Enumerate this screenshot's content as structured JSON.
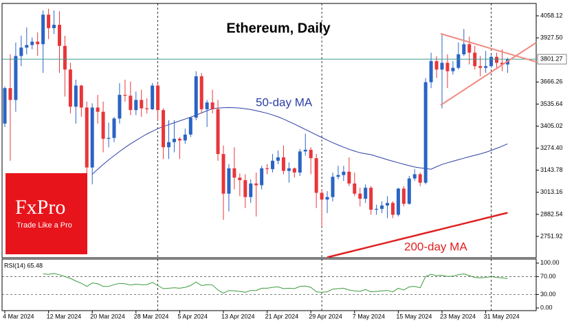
{
  "chart_data": [
    {
      "type": "candlestick",
      "title": "Ethereum, Daily",
      "categories": [
        "4 Mar 2024",
        null,
        null,
        null,
        null,
        null,
        null,
        null,
        "12 Mar 2024",
        null,
        null,
        null,
        null,
        null,
        null,
        null,
        "20 Mar 2024",
        null,
        null,
        null,
        null,
        null,
        null,
        null,
        "28 Mar 2024",
        null,
        null,
        null,
        null,
        null,
        null,
        null,
        "5 Apr 2024",
        null,
        null,
        null,
        null,
        null,
        null,
        null,
        "13 Apr 2024",
        null,
        null,
        null,
        null,
        null,
        null,
        null,
        "21 Apr 2024",
        null,
        null,
        null,
        null,
        null,
        null,
        null,
        "29 Apr 2024",
        null,
        null,
        null,
        null,
        null,
        null,
        null,
        "7 May 2024",
        null,
        null,
        null,
        null,
        null,
        null,
        null,
        "15 May 2024",
        null,
        null,
        null,
        null,
        null,
        null,
        null,
        "23 May 2024",
        null,
        null,
        null,
        null,
        null,
        null,
        null,
        "31 May 2024",
        null,
        null,
        null,
        null
      ],
      "open": [
        3420,
        3630,
        3560,
        3820,
        3870,
        3885,
        3905,
        3890,
        4065,
        3985,
        4005,
        3880,
        3740,
        3520,
        3645,
        3515,
        3160,
        3515,
        3490,
        3330,
        3335,
        3450,
        3590,
        3585,
        3500,
        3560,
        3510,
        3505,
        3645,
        3500,
        3280,
        3310,
        3330,
        3320,
        3355,
        3455,
        3700,
        3505,
        3545,
        3505,
        3240,
        3005,
        3155,
        3100,
        3085,
        2985,
        3065,
        3055,
        3155,
        3150,
        3200,
        3220,
        3140,
        3155,
        3130,
        3255,
        3265,
        3215,
        3010,
        2970,
        2985,
        3105,
        3115,
        3135,
        3065,
        3005,
        2975,
        3040,
        2910,
        2915,
        2935,
        2950,
        2880,
        3035,
        2945,
        3095,
        3120,
        3070,
        3665,
        3790,
        3740,
        3780,
        3730,
        3750,
        3830,
        3890,
        3840,
        3760,
        3750,
        3760,
        3815,
        3780,
        3770
      ],
      "high": [
        3640,
        3830,
        3900,
        3940,
        3990,
        3930,
        3960,
        4090,
        4100,
        4090,
        4085,
        3940,
        3780,
        3680,
        3650,
        3550,
        3540,
        3590,
        3550,
        3425,
        3460,
        3660,
        3680,
        3670,
        3610,
        3620,
        3570,
        3660,
        3660,
        3510,
        3440,
        3440,
        3340,
        3390,
        3460,
        3730,
        3720,
        3560,
        3620,
        3560,
        3290,
        3180,
        3280,
        3125,
        3120,
        3090,
        3130,
        3170,
        3180,
        3240,
        3260,
        3290,
        3190,
        3160,
        3270,
        3360,
        3280,
        3240,
        3030,
        3020,
        3130,
        3170,
        3170,
        3220,
        3130,
        3040,
        3060,
        3050,
        2940,
        2960,
        2990,
        2960,
        3040,
        3050,
        3110,
        3150,
        3130,
        3690,
        3840,
        3820,
        3950,
        3830,
        3790,
        3900,
        3980,
        3935,
        3880,
        3820,
        3850,
        3830,
        3840,
        3860,
        3810
      ],
      "low": [
        3400,
        3200,
        3490,
        3760,
        3830,
        3860,
        3820,
        3720,
        3920,
        3950,
        3720,
        3580,
        3480,
        3420,
        3460,
        3060,
        3060,
        3420,
        3250,
        3280,
        3310,
        3420,
        3550,
        3470,
        3470,
        3460,
        3480,
        3500,
        3440,
        3210,
        3210,
        3250,
        3210,
        3300,
        3340,
        3440,
        3480,
        3400,
        3480,
        3200,
        2850,
        2900,
        3030,
        2990,
        2920,
        2950,
        2870,
        3030,
        3120,
        3130,
        3180,
        3120,
        3070,
        3100,
        3110,
        3230,
        3120,
        2920,
        2810,
        2890,
        2960,
        3090,
        3080,
        3050,
        2990,
        2930,
        2950,
        2880,
        2880,
        2890,
        2860,
        2860,
        2870,
        2930,
        2940,
        3080,
        3050,
        3060,
        3630,
        3690,
        3510,
        3630,
        3710,
        3740,
        3820,
        3770,
        3740,
        3700,
        3720,
        3750,
        3750,
        3730,
        3720
      ],
      "close": [
        3630,
        3560,
        3820,
        3870,
        3885,
        3905,
        3890,
        4065,
        3985,
        4005,
        3880,
        3740,
        3520,
        3645,
        3515,
        3160,
        3515,
        3490,
        3330,
        3335,
        3450,
        3590,
        3585,
        3500,
        3560,
        3510,
        3505,
        3645,
        3500,
        3280,
        3310,
        3330,
        3320,
        3355,
        3455,
        3700,
        3505,
        3545,
        3505,
        3240,
        3005,
        3155,
        3100,
        3085,
        2985,
        3065,
        3055,
        3155,
        3150,
        3200,
        3220,
        3140,
        3155,
        3130,
        3255,
        3265,
        3215,
        3010,
        2970,
        2985,
        3105,
        3115,
        3135,
        3065,
        3005,
        2975,
        3040,
        2910,
        2915,
        2935,
        2950,
        2880,
        3035,
        2945,
        3095,
        3120,
        3070,
        3665,
        3790,
        3740,
        3780,
        3730,
        3750,
        3830,
        3890,
        3840,
        3760,
        3750,
        3760,
        3815,
        3780,
        3770,
        3801.27
      ],
      "up_color": "#2a64c4",
      "down_color": "#e8363a",
      "last_price_color": "#3a9a8e",
      "series": [
        {
          "name": "50-day MA",
          "color": "#2b3ea6",
          "width": 1,
          "values": [
            null,
            null,
            null,
            null,
            null,
            null,
            null,
            null,
            null,
            null,
            null,
            null,
            null,
            null,
            null,
            null,
            3120,
            3150,
            3178,
            3205,
            3230,
            3255,
            3278,
            3300,
            3320,
            3340,
            3358,
            3374,
            3390,
            3402,
            3414,
            3425,
            3436,
            3447,
            3458,
            3470,
            3483,
            3496,
            3508,
            3512,
            3514,
            3515,
            3514,
            3512,
            3508,
            3503,
            3496,
            3489,
            3481,
            3471,
            3460,
            3447,
            3432,
            3417,
            3401,
            3385,
            3369,
            3353,
            3338,
            3322,
            3307,
            3293,
            3280,
            3268,
            3257,
            3247,
            3241,
            3236,
            3226,
            3216,
            3206,
            3197,
            3188,
            3179,
            3171,
            3163,
            3158,
            3154,
            3150,
            3165,
            3178,
            3188,
            3197,
            3206,
            3215,
            3224,
            3232,
            3240,
            3250,
            3261,
            3273,
            3286,
            3300
          ]
        },
        {
          "name": "200-day MA",
          "color": "#e02020",
          "width": 2.5,
          "values": [
            null,
            null,
            null,
            null,
            null,
            null,
            null,
            null,
            null,
            null,
            null,
            null,
            null,
            null,
            null,
            null,
            null,
            null,
            null,
            null,
            null,
            null,
            null,
            null,
            null,
            null,
            null,
            null,
            null,
            null,
            null,
            null,
            null,
            null,
            null,
            null,
            null,
            null,
            null,
            null,
            null,
            null,
            null,
            null,
            null,
            null,
            null,
            null,
            null,
            null,
            null,
            null,
            null,
            null,
            null,
            null,
            null,
            null,
            null,
            2628,
            2636,
            2644,
            2652,
            2660,
            2668,
            2676,
            2684,
            2692,
            2700,
            2708,
            2716,
            2724,
            2732,
            2740,
            2748,
            2756,
            2764,
            2772,
            2780,
            2788,
            2796,
            2804,
            2812,
            2820,
            2828,
            2836,
            2844,
            2852,
            2860,
            2868,
            2876,
            2884,
            2892
          ]
        }
      ],
      "ylim": [
        2625.7,
        4131.4
      ],
      "yticks": [
        4058.12,
        {
          "value": 3927.5,
          "label": "3927.50"
        },
        3666.26,
        3535.64,
        3405.02,
        {
          "value": 3274.4,
          "label": "3274.40"
        },
        3143.78,
        3013.16,
        2882.54,
        2751.92
      ]
    },
    {
      "type": "line",
      "title": "RSI(14) 65.48",
      "series": [
        {
          "color": "#3a9a3a",
          "values": [
            null,
            null,
            null,
            null,
            null,
            null,
            null,
            76,
            75,
            77,
            74,
            70,
            66,
            60,
            55,
            48,
            56,
            54,
            48,
            48,
            52,
            55,
            54,
            51,
            53,
            52,
            52,
            57,
            50,
            43,
            44,
            45,
            44,
            46,
            50,
            58,
            50,
            52,
            51,
            40,
            33,
            39,
            38,
            37,
            35,
            39,
            39,
            44,
            44,
            46,
            47,
            43,
            44,
            43,
            48,
            49,
            46,
            36,
            35,
            36,
            42,
            43,
            44,
            40,
            38,
            37,
            41,
            36,
            37,
            38,
            39,
            36,
            44,
            40,
            47,
            48,
            45,
            70,
            75,
            72,
            73,
            70,
            71,
            74,
            76,
            72,
            68,
            67,
            68,
            70,
            68,
            67,
            65.48
          ]
        }
      ],
      "levels": [
        70,
        30
      ],
      "ylim": [
        -6,
        109
      ],
      "yticks": [
        {
          "value": 100,
          "label": "100.00"
        },
        {
          "value": 70,
          "label": "70.00"
        },
        {
          "value": 30,
          "label": "30.00"
        },
        {
          "value": 0,
          "label": "0.00"
        }
      ]
    }
  ],
  "logo": {
    "brand": "FxPro",
    "tagline": "Trade Like a Pro"
  }
}
